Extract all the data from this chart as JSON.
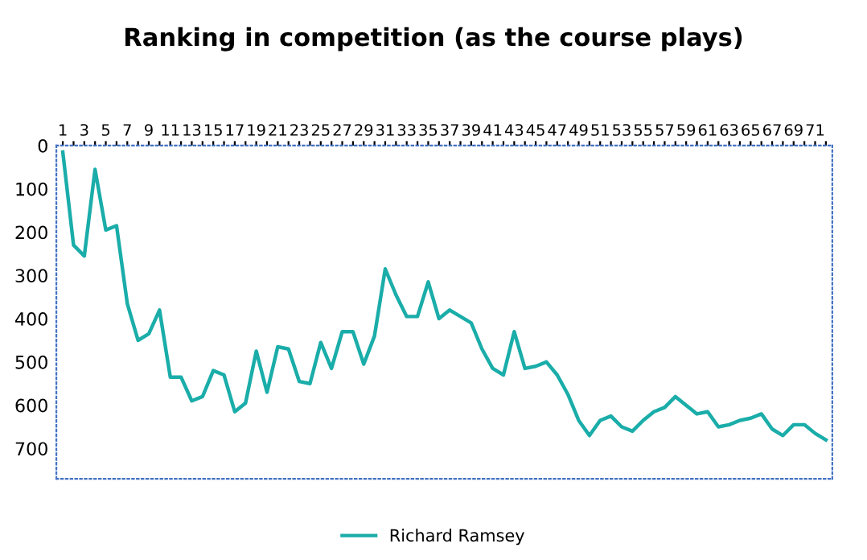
{
  "chart_data": {
    "type": "line",
    "title": "Ranking in competition (as the course plays)",
    "categories": [
      "1",
      null,
      "3",
      null,
      "5",
      null,
      "7",
      null,
      "9",
      null,
      "11",
      null,
      "13",
      null,
      "15",
      null,
      "17",
      null,
      "19",
      null,
      "21",
      null,
      "23",
      null,
      "25",
      null,
      "27",
      null,
      "29",
      null,
      "31",
      null,
      "33",
      null,
      "35",
      null,
      "37",
      null,
      "39",
      null,
      "41",
      null,
      "43",
      null,
      "45",
      null,
      "47",
      null,
      "49",
      null,
      "51",
      null,
      "53",
      null,
      "55",
      null,
      "57",
      null,
      "59",
      null,
      "61",
      null,
      "63",
      null,
      "65",
      null,
      "67",
      null,
      "69",
      null,
      "71",
      null
    ],
    "series": [
      {
        "name": "Richard Ramsey",
        "color": "#1aada9",
        "values": [
          15,
          230,
          255,
          55,
          195,
          185,
          365,
          450,
          435,
          380,
          535,
          535,
          590,
          580,
          520,
          530,
          615,
          595,
          475,
          570,
          465,
          470,
          545,
          550,
          455,
          515,
          430,
          430,
          505,
          440,
          285,
          345,
          395,
          395,
          315,
          400,
          380,
          395,
          410,
          470,
          515,
          530,
          430,
          515,
          510,
          500,
          530,
          575,
          635,
          670,
          635,
          625,
          650,
          660,
          635,
          615,
          605,
          580,
          600,
          620,
          615,
          650,
          645,
          635,
          630,
          620,
          655,
          670,
          645,
          645,
          665,
          680
        ]
      }
    ],
    "ylim": [
      770,
      0
    ],
    "yticks": [
      0,
      100,
      200,
      300,
      400,
      500,
      600,
      700
    ],
    "grid": false,
    "legend": "bottom",
    "marker": "none",
    "line_style": "solid"
  }
}
